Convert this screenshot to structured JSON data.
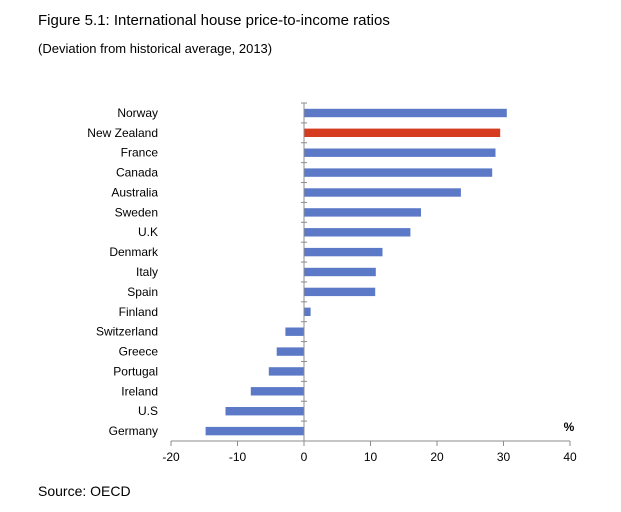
{
  "title": "Figure 5.1: International house price-to-income ratios",
  "subtitle": "(Deviation from historical average, 2013)",
  "source": "Source: OECD",
  "chart_data": {
    "type": "bar",
    "orientation": "horizontal",
    "unit_label": "%",
    "categories": [
      "Norway",
      "New Zealand",
      "France",
      "Canada",
      "Australia",
      "Sweden",
      "U.K",
      "Denmark",
      "Italy",
      "Spain",
      "Finland",
      "Switzerland",
      "Greece",
      "Portugal",
      "Ireland",
      "U.S",
      "Germany"
    ],
    "values": [
      30.5,
      29.5,
      28.8,
      28.3,
      23.6,
      17.6,
      16.0,
      11.8,
      10.8,
      10.7,
      1.0,
      -2.8,
      -4.1,
      -5.3,
      -8.0,
      -11.8,
      -14.8
    ],
    "highlight": "New Zealand",
    "xlim": [
      -20,
      40
    ],
    "xticks": [
      -20,
      -10,
      0,
      10,
      20,
      30,
      40
    ],
    "colors": {
      "bar": "#5b79c6",
      "highlight": "#d63c1f",
      "axis": "#8c8c8c"
    },
    "grid": false,
    "legend": "none"
  }
}
